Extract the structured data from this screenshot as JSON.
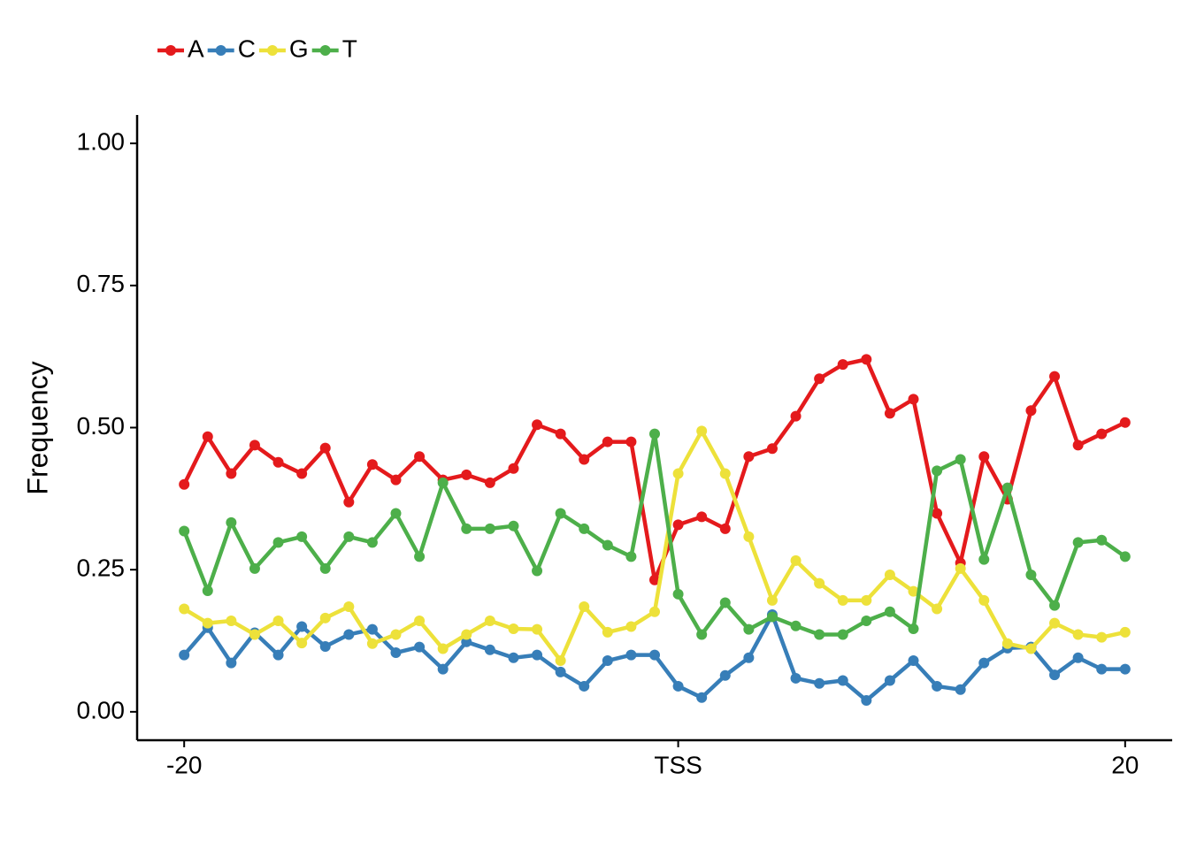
{
  "chart_data": {
    "type": "line",
    "x": [
      -20,
      -19,
      -18,
      -17,
      -16,
      -15,
      -14,
      -13,
      -12,
      -11,
      -10,
      -9,
      -8,
      -7,
      -6,
      -5,
      -4,
      -3,
      -2,
      -1,
      0,
      1,
      2,
      3,
      4,
      5,
      6,
      7,
      8,
      9,
      10,
      11,
      12,
      13,
      14,
      15,
      16,
      17,
      18,
      19,
      20
    ],
    "series": [
      {
        "name": "A",
        "color": "#e41a1c",
        "values": [
          0.4,
          0.484,
          0.419,
          0.469,
          0.439,
          0.419,
          0.464,
          0.369,
          0.435,
          0.408,
          0.449,
          0.408,
          0.417,
          0.403,
          0.428,
          0.505,
          0.489,
          0.444,
          0.475,
          0.475,
          0.232,
          0.329,
          0.343,
          0.322,
          0.449,
          0.463,
          0.52,
          0.586,
          0.611,
          0.62,
          0.525,
          0.55,
          0.349,
          0.262,
          0.449,
          0.374,
          0.53,
          0.59,
          0.469,
          0.489,
          0.509
        ]
      },
      {
        "name": "C",
        "color": "#377eb8",
        "values": [
          0.1,
          0.148,
          0.086,
          0.139,
          0.1,
          0.15,
          0.115,
          0.136,
          0.145,
          0.104,
          0.114,
          0.075,
          0.123,
          0.109,
          0.095,
          0.1,
          0.07,
          0.045,
          0.09,
          0.1,
          0.1,
          0.045,
          0.025,
          0.064,
          0.095,
          0.171,
          0.059,
          0.05,
          0.055,
          0.02,
          0.055,
          0.09,
          0.045,
          0.039,
          0.086,
          0.112,
          0.114,
          0.065,
          0.095,
          0.075,
          0.075
        ]
      },
      {
        "name": "G",
        "color": "#ede13a",
        "values": [
          0.181,
          0.156,
          0.16,
          0.136,
          0.16,
          0.121,
          0.165,
          0.185,
          0.12,
          0.136,
          0.16,
          0.111,
          0.136,
          0.16,
          0.146,
          0.145,
          0.09,
          0.185,
          0.14,
          0.15,
          0.176,
          0.419,
          0.494,
          0.419,
          0.308,
          0.196,
          0.266,
          0.226,
          0.196,
          0.196,
          0.241,
          0.212,
          0.181,
          0.252,
          0.196,
          0.12,
          0.111,
          0.156,
          0.136,
          0.131,
          0.14
        ]
      },
      {
        "name": "T",
        "color": "#4daf4a",
        "values": [
          0.318,
          0.213,
          0.333,
          0.252,
          0.298,
          0.308,
          0.252,
          0.308,
          0.298,
          0.349,
          0.273,
          0.403,
          0.322,
          0.322,
          0.327,
          0.248,
          0.349,
          0.322,
          0.293,
          0.273,
          0.489,
          0.207,
          0.136,
          0.192,
          0.145,
          0.167,
          0.151,
          0.136,
          0.136,
          0.16,
          0.176,
          0.146,
          0.424,
          0.444,
          0.268,
          0.394,
          0.241,
          0.187,
          0.298,
          0.302,
          0.273
        ]
      }
    ],
    "y_label": "Frequency",
    "xlim": [
      -22,
      22
    ],
    "xticks": [
      -20,
      {
        "value": 1,
        "label": "TSS"
      },
      20
    ],
    "ylim": [
      -0.05,
      1.05
    ],
    "yticks": [
      {
        "value": 0,
        "label": "0.00"
      },
      {
        "value": 0.25,
        "label": "0.25"
      },
      {
        "value": 0.5,
        "label": "0.50"
      },
      {
        "value": 0.75,
        "label": "0.75"
      },
      {
        "value": 1,
        "label": "1.00"
      }
    ],
    "legend": "top-left"
  }
}
